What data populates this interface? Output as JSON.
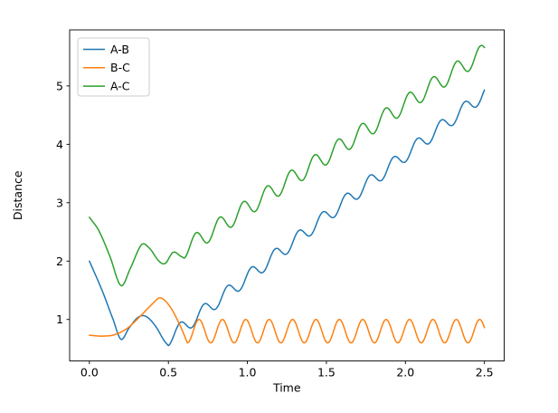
{
  "figure": {
    "background": "#ffffff",
    "axes_color": "#000000",
    "text_color": "#000000"
  },
  "chart_data": {
    "type": "line",
    "title": "",
    "xlabel": "Time",
    "ylabel": "Distance",
    "xlim": [
      -0.125,
      2.625
    ],
    "ylim": [
      0.29,
      5.96
    ],
    "xticks": {
      "values": [
        0.0,
        0.5,
        1.0,
        1.5,
        2.0,
        2.5
      ],
      "labels": [
        "0.0",
        "0.5",
        "1.0",
        "1.5",
        "2.0",
        "2.5"
      ]
    },
    "yticks": {
      "values": [
        1,
        2,
        3,
        4,
        5
      ],
      "labels": [
        "1",
        "2",
        "3",
        "4",
        "5"
      ]
    },
    "grid": false,
    "line_width": 1.5,
    "legend": {
      "position": "upper-left",
      "border_color": "#cccccc",
      "background": "#ffffff",
      "entries": [
        "A-B",
        "B-C",
        "A-C"
      ]
    },
    "series": [
      {
        "name": "A-B",
        "color": "#1f77b4",
        "x_range": [
          0,
          2.5
        ],
        "keypoints": [
          [
            0,
            2.0
          ],
          [
            0.08,
            1.5
          ],
          [
            0.15,
            1.0
          ],
          [
            0.2,
            0.66
          ],
          [
            0.25,
            0.85
          ],
          [
            0.31,
            1.04
          ],
          [
            0.36,
            1.05
          ],
          [
            0.42,
            0.88
          ],
          [
            0.47,
            0.65
          ],
          [
            0.5,
            0.55
          ]
        ],
        "model": {
          "t_split": 0.5,
          "base": 0.67,
          "slope": 2.1,
          "amp": 0.12,
          "period": 0.15,
          "phase": -1.5708
        }
      },
      {
        "name": "B-C",
        "color": "#ff7f0e",
        "x_range": [
          0,
          2.5
        ],
        "keypoints": [
          [
            0,
            0.73
          ],
          [
            0.08,
            0.715
          ],
          [
            0.16,
            0.74
          ],
          [
            0.24,
            0.85
          ],
          [
            0.32,
            1.05
          ],
          [
            0.4,
            1.27
          ],
          [
            0.45,
            1.37
          ],
          [
            0.51,
            1.22
          ],
          [
            0.57,
            0.92
          ],
          [
            0.62,
            0.6
          ]
        ],
        "model": {
          "t_split": 0.62,
          "base": 0.8,
          "slope": 0,
          "amp": 0.2,
          "period": 0.148,
          "phase": -1.5708
        }
      },
      {
        "name": "A-C",
        "color": "#2ca02c",
        "x_range": [
          0,
          2.5
        ],
        "keypoints": [
          [
            0,
            2.75
          ],
          [
            0.06,
            2.52
          ],
          [
            0.13,
            2.08
          ],
          [
            0.2,
            1.58
          ],
          [
            0.26,
            1.88
          ],
          [
            0.33,
            2.28
          ],
          [
            0.38,
            2.22
          ],
          [
            0.44,
            2.0
          ],
          [
            0.48,
            1.96
          ],
          [
            0.53,
            2.15
          ],
          [
            0.58,
            2.08
          ],
          [
            0.6,
            2.05
          ]
        ],
        "model": {
          "t_split": 0.6,
          "base": 2.2,
          "slope": 1.78,
          "amp": 0.15,
          "period": 0.15,
          "phase": -1.5708
        }
      }
    ]
  }
}
